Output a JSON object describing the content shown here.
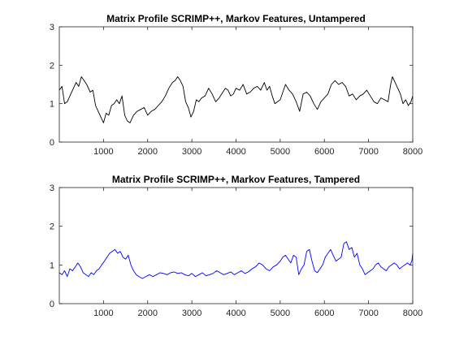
{
  "chart_data": [
    {
      "type": "line",
      "title": "Matrix Profile SCRIMP++, Markov Features, Untampered",
      "xlabel": "",
      "ylabel": "",
      "xlim": [
        0,
        8000
      ],
      "ylim": [
        0,
        3
      ],
      "xticks": [
        1000,
        2000,
        3000,
        4000,
        5000,
        6000,
        7000,
        8000
      ],
      "yticks": [
        0,
        1,
        2,
        3
      ],
      "grid": false,
      "series": [
        {
          "color": "#000000",
          "x": [
            0,
            60,
            120,
            180,
            260,
            320,
            380,
            440,
            500,
            560,
            620,
            700,
            760,
            820,
            880,
            940,
            1000,
            1060,
            1120,
            1180,
            1240,
            1300,
            1360,
            1420,
            1480,
            1540,
            1600,
            1680,
            1760,
            1840,
            1920,
            2000,
            2080,
            2160,
            2240,
            2320,
            2400,
            2480,
            2560,
            2620,
            2680,
            2740,
            2800,
            2860,
            2920,
            2980,
            3040,
            3100,
            3160,
            3220,
            3300,
            3380,
            3460,
            3540,
            3620,
            3700,
            3760,
            3820,
            3880,
            3940,
            4000,
            4080,
            4160,
            4240,
            4320,
            4400,
            4480,
            4560,
            4640,
            4700,
            4760,
            4820,
            4880,
            4940,
            5000,
            5060,
            5120,
            5200,
            5280,
            5360,
            5440,
            5520,
            5600,
            5680,
            5760,
            5840,
            5920,
            6000,
            6080,
            6160,
            6240,
            6320,
            6400,
            6480,
            6560,
            6640,
            6720,
            6800,
            6880,
            6960,
            7040,
            7120,
            7200,
            7280,
            7360,
            7440,
            7500,
            7540,
            7600,
            7660,
            7720,
            7780,
            7840,
            7900,
            7960,
            8000
          ],
          "y": [
            1.35,
            1.45,
            1.0,
            1.05,
            1.25,
            1.4,
            1.55,
            1.45,
            1.7,
            1.6,
            1.5,
            1.3,
            1.35,
            0.95,
            0.8,
            0.65,
            0.5,
            0.75,
            0.7,
            0.95,
            1.0,
            1.1,
            1.0,
            1.2,
            0.7,
            0.55,
            0.5,
            0.7,
            0.8,
            0.85,
            0.9,
            0.7,
            0.8,
            0.85,
            0.95,
            1.05,
            1.2,
            1.4,
            1.55,
            1.6,
            1.7,
            1.6,
            1.45,
            1.05,
            0.9,
            0.65,
            0.8,
            1.1,
            1.05,
            1.15,
            1.2,
            1.4,
            1.25,
            1.05,
            1.15,
            1.3,
            1.4,
            1.35,
            1.2,
            1.25,
            1.4,
            1.35,
            1.5,
            1.25,
            1.3,
            1.4,
            1.45,
            1.35,
            1.55,
            1.35,
            1.45,
            1.2,
            1.0,
            1.05,
            1.1,
            1.3,
            1.5,
            1.35,
            1.25,
            1.05,
            0.8,
            1.25,
            1.3,
            1.2,
            1.0,
            0.85,
            1.05,
            1.15,
            1.25,
            1.5,
            1.6,
            1.5,
            1.55,
            1.45,
            1.2,
            1.25,
            1.1,
            1.2,
            1.25,
            1.35,
            1.2,
            1.05,
            1.0,
            1.15,
            1.1,
            1.05,
            1.5,
            1.7,
            1.55,
            1.4,
            1.25,
            1.0,
            1.1,
            0.95,
            1.05,
            1.2
          ]
        }
      ]
    },
    {
      "type": "line",
      "title": "Matrix Profile SCRIMP++, Markov Features, Tampered",
      "xlabel": "",
      "ylabel": "",
      "xlim": [
        0,
        8000
      ],
      "ylim": [
        0,
        3
      ],
      "xticks": [
        1000,
        2000,
        3000,
        4000,
        5000,
        6000,
        7000,
        8000
      ],
      "yticks": [
        0,
        1,
        2,
        3
      ],
      "grid": false,
      "series": [
        {
          "color": "#0000ff",
          "x": [
            0,
            60,
            120,
            180,
            240,
            300,
            360,
            420,
            480,
            540,
            600,
            660,
            720,
            780,
            840,
            900,
            960,
            1020,
            1080,
            1140,
            1200,
            1260,
            1320,
            1380,
            1440,
            1500,
            1560,
            1620,
            1680,
            1740,
            1800,
            1880,
            1960,
            2040,
            2120,
            2200,
            2280,
            2360,
            2440,
            2520,
            2600,
            2680,
            2760,
            2840,
            2920,
            3000,
            3080,
            3160,
            3240,
            3320,
            3400,
            3480,
            3560,
            3640,
            3720,
            3800,
            3880,
            3960,
            4040,
            4120,
            4200,
            4280,
            4360,
            4440,
            4520,
            4600,
            4680,
            4760,
            4840,
            4920,
            5000,
            5060,
            5120,
            5180,
            5240,
            5300,
            5360,
            5420,
            5480,
            5540,
            5600,
            5660,
            5720,
            5780,
            5840,
            5900,
            5960,
            6020,
            6080,
            6140,
            6200,
            6260,
            6320,
            6380,
            6440,
            6500,
            6560,
            6620,
            6680,
            6740,
            6800,
            6860,
            6920,
            6980,
            7040,
            7100,
            7160,
            7220,
            7280,
            7340,
            7400,
            7460,
            7520,
            7580,
            7640,
            7700,
            7760,
            7820,
            7880,
            7940,
            7980,
            8000
          ],
          "y": [
            0.8,
            0.75,
            0.85,
            0.7,
            0.9,
            0.85,
            0.95,
            1.05,
            0.95,
            0.8,
            0.75,
            0.7,
            0.8,
            0.75,
            0.85,
            0.9,
            1.0,
            1.1,
            1.2,
            1.3,
            1.35,
            1.4,
            1.3,
            1.35,
            1.2,
            1.15,
            1.25,
            1.0,
            0.85,
            0.75,
            0.7,
            0.65,
            0.7,
            0.75,
            0.7,
            0.75,
            0.8,
            0.78,
            0.75,
            0.8,
            0.82,
            0.78,
            0.8,
            0.75,
            0.72,
            0.78,
            0.7,
            0.75,
            0.8,
            0.72,
            0.75,
            0.78,
            0.85,
            0.8,
            0.75,
            0.78,
            0.82,
            0.75,
            0.8,
            0.85,
            0.78,
            0.82,
            0.9,
            0.95,
            1.05,
            1.0,
            0.9,
            0.85,
            0.95,
            1.0,
            1.1,
            1.2,
            1.25,
            1.15,
            1.05,
            1.25,
            1.2,
            0.75,
            0.9,
            1.0,
            1.35,
            1.4,
            1.1,
            0.85,
            0.8,
            0.9,
            1.0,
            1.2,
            1.3,
            1.4,
            1.25,
            1.1,
            1.15,
            1.2,
            1.55,
            1.6,
            1.4,
            1.45,
            1.2,
            1.3,
            1.0,
            0.9,
            0.75,
            0.8,
            0.85,
            0.9,
            1.0,
            1.05,
            0.95,
            0.9,
            0.85,
            0.95,
            1.0,
            1.05,
            1.0,
            0.9,
            0.95,
            1.0,
            1.05,
            1.0,
            1.1,
            1.3
          ]
        }
      ]
    }
  ]
}
